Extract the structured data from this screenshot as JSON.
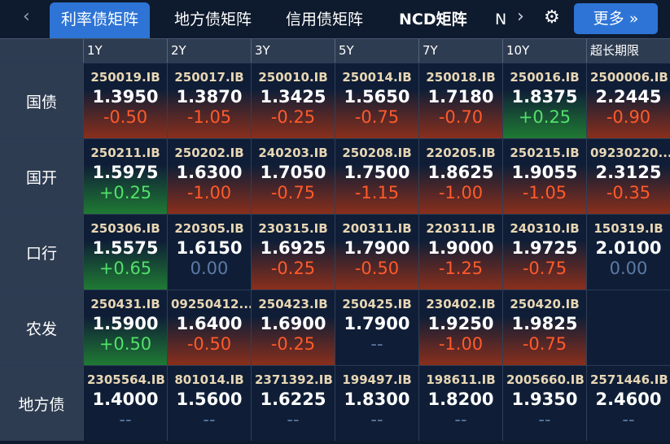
{
  "tabs": [
    "利率债矩阵",
    "地方债矩阵",
    "信用债矩阵",
    "NCD矩阵",
    "N"
  ],
  "more_label": "更多 »",
  "columns": [
    "1Y",
    "2Y",
    "3Y",
    "5Y",
    "7Y",
    "10Y",
    "超长期限"
  ],
  "colors": {
    "accent": "#2d74d6",
    "down": "#ff5a2a",
    "up": "#52e06a",
    "flat": "#5c7aa6"
  },
  "rows": [
    {
      "label": "国债",
      "cells": [
        {
          "code": "250019.IB",
          "yield": "1.3950",
          "change": "-0.50"
        },
        {
          "code": "250017.IB",
          "yield": "1.3870",
          "change": "-1.05"
        },
        {
          "code": "250010.IB",
          "yield": "1.3425",
          "change": "-0.25"
        },
        {
          "code": "250014.IB",
          "yield": "1.5650",
          "change": "-0.75"
        },
        {
          "code": "250018.IB",
          "yield": "1.7180",
          "change": "-0.70"
        },
        {
          "code": "250016.IB",
          "yield": "1.8375",
          "change": "+0.25"
        },
        {
          "code": "2500006.IB",
          "yield": "2.2445",
          "change": "-0.90"
        }
      ]
    },
    {
      "label": "国开",
      "cells": [
        {
          "code": "250211.IB",
          "yield": "1.5975",
          "change": "+0.25"
        },
        {
          "code": "250202.IB",
          "yield": "1.6300",
          "change": "-1.00"
        },
        {
          "code": "240203.IB",
          "yield": "1.7050",
          "change": "-0.75"
        },
        {
          "code": "250208.IB",
          "yield": "1.7500",
          "change": "-1.15"
        },
        {
          "code": "220205.IB",
          "yield": "1.8625",
          "change": "-1.00"
        },
        {
          "code": "250215.IB",
          "yield": "1.9055",
          "change": "-1.05"
        },
        {
          "code": "09230220...",
          "yield": "2.3125",
          "change": "-0.35"
        }
      ]
    },
    {
      "label": "口行",
      "cells": [
        {
          "code": "250306.IB",
          "yield": "1.5575",
          "change": "+0.65"
        },
        {
          "code": "220305.IB",
          "yield": "1.6150",
          "change": "0.00"
        },
        {
          "code": "230315.IB",
          "yield": "1.6925",
          "change": "-0.25"
        },
        {
          "code": "200311.IB",
          "yield": "1.7900",
          "change": "-0.50"
        },
        {
          "code": "220311.IB",
          "yield": "1.9000",
          "change": "-1.25"
        },
        {
          "code": "240310.IB",
          "yield": "1.9725",
          "change": "-0.75"
        },
        {
          "code": "150319.IB",
          "yield": "2.0100",
          "change": "0.00"
        }
      ]
    },
    {
      "label": "农发",
      "cells": [
        {
          "code": "250431.IB",
          "yield": "1.5900",
          "change": "+0.50"
        },
        {
          "code": "09250412...",
          "yield": "1.6400",
          "change": "-0.50"
        },
        {
          "code": "250423.IB",
          "yield": "1.6900",
          "change": "-0.25"
        },
        {
          "code": "250425.IB",
          "yield": "1.7900",
          "change": "--"
        },
        {
          "code": "230402.IB",
          "yield": "1.9250",
          "change": "-1.00"
        },
        {
          "code": "250420.IB",
          "yield": "1.9825",
          "change": "-0.75"
        },
        {
          "code": "",
          "yield": "",
          "change": ""
        }
      ]
    },
    {
      "label": "地方债",
      "cells": [
        {
          "code": "2305564.IB",
          "yield": "1.4000",
          "change": "--"
        },
        {
          "code": "801014.IB",
          "yield": "1.5600",
          "change": "--"
        },
        {
          "code": "2371392.IB",
          "yield": "1.6225",
          "change": "--"
        },
        {
          "code": "199497.IB",
          "yield": "1.8300",
          "change": "--"
        },
        {
          "code": "198611.IB",
          "yield": "1.8200",
          "change": "--"
        },
        {
          "code": "2005660.IB",
          "yield": "1.9350",
          "change": "--"
        },
        {
          "code": "2571446.IB",
          "yield": "2.4600",
          "change": "--"
        }
      ]
    }
  ]
}
